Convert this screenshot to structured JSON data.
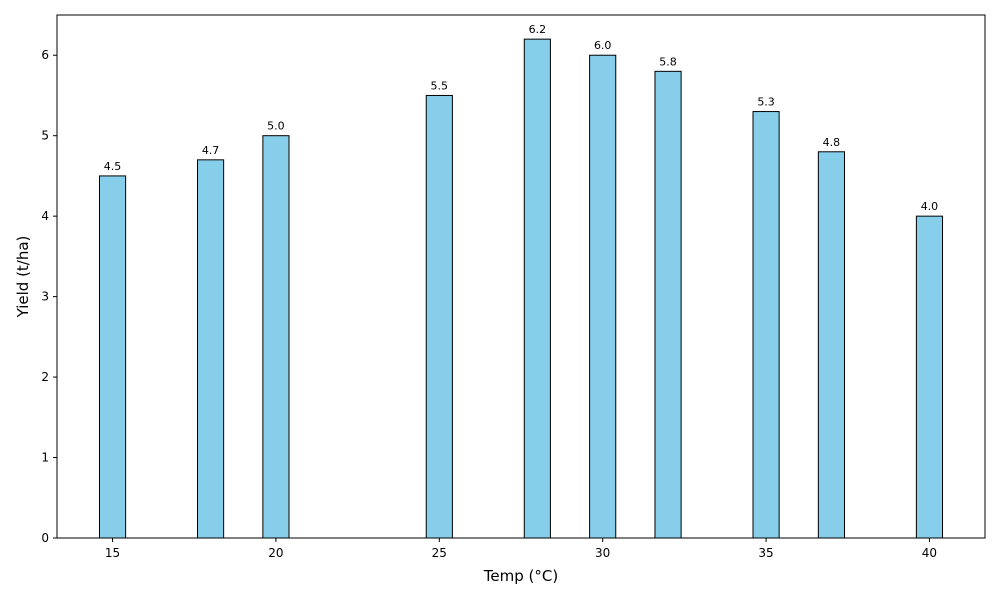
{
  "chart_data": {
    "type": "bar",
    "title": "",
    "xlabel": "Temp (°C)",
    "ylabel": "Yield (t/ha)",
    "x": [
      15,
      18,
      20,
      25,
      28,
      30,
      32,
      35,
      37,
      40
    ],
    "values": [
      4.5,
      4.7,
      5.0,
      5.5,
      6.2,
      6.0,
      5.8,
      5.3,
      4.8,
      4.0
    ],
    "data_labels": [
      "4.5",
      "4.7",
      "5.0",
      "5.5",
      "6.2",
      "6.0",
      "5.8",
      "5.3",
      "4.8",
      "4.0"
    ],
    "bar_width": 0.8,
    "xlim": [
      13.3,
      41.7
    ],
    "ylim": [
      0,
      6.5
    ],
    "xticks": [
      15,
      20,
      25,
      30,
      35,
      40
    ],
    "yticks": [
      0,
      1,
      2,
      3,
      4,
      5,
      6
    ],
    "grid": false,
    "bar_color": "#87ceeb",
    "edge_color": "#000000"
  }
}
